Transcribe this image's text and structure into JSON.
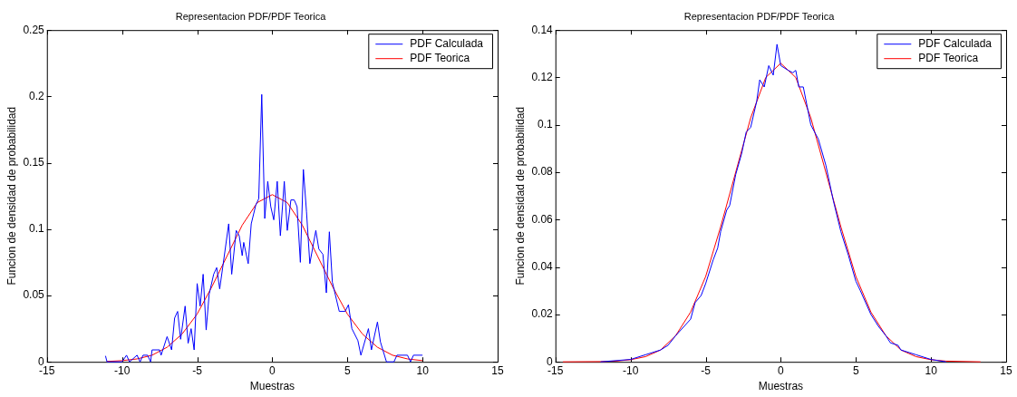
{
  "chart_data": [
    {
      "type": "line",
      "title": "Representacion PDF/PDF Teorica",
      "xlabel": "Muestras",
      "ylabel": "Funcion de densidad de probabilidad",
      "xlim": [
        -15,
        15
      ],
      "ylim": [
        0,
        0.25
      ],
      "xticks": [
        -15,
        -10,
        -5,
        0,
        5,
        10,
        15
      ],
      "yticks": [
        0,
        0.05,
        0.1,
        0.15,
        0.2,
        0.25
      ],
      "grid": false,
      "legend": "top right",
      "series": [
        {
          "name": "PDF Calculada",
          "color": "#0000ff",
          "x": [
            -11.1,
            -11.0,
            -10.0,
            -9.7,
            -9.5,
            -9.0,
            -8.8,
            -8.6,
            -8.3,
            -8.1,
            -8.0,
            -7.5,
            -7.4,
            -7.0,
            -6.7,
            -6.5,
            -6.3,
            -6.1,
            -5.8,
            -5.6,
            -5.4,
            -5.2,
            -5.0,
            -4.8,
            -4.6,
            -4.4,
            -4.2,
            -3.9,
            -3.7,
            -3.5,
            -3.3,
            -2.9,
            -2.7,
            -2.4,
            -2.2,
            -2.0,
            -1.9,
            -1.6,
            -1.4,
            -1.1,
            -0.9,
            -0.7,
            -0.5,
            -0.3,
            -0.1,
            0.1,
            0.33,
            0.54,
            0.8,
            1.0,
            1.24,
            1.46,
            1.65,
            1.87,
            2.07,
            2.28,
            2.5,
            2.9,
            3.1,
            3.37,
            3.6,
            3.8,
            4.0,
            4.46,
            4.85,
            5.07,
            5.3,
            5.7,
            5.9,
            6.4,
            6.6,
            7.0,
            7.2,
            7.6,
            8.1,
            8.3,
            9.0,
            9.2,
            9.4,
            10.0
          ],
          "values": [
            0.0045,
            0,
            0,
            0.005,
            0,
            0.005,
            0,
            0.005,
            0.005,
            0,
            0.009,
            0.009,
            0.005,
            0.019,
            0.009,
            0.033,
            0.038,
            0.017,
            0.042,
            0.014,
            0.025,
            0.009,
            0.059,
            0.042,
            0.066,
            0.024,
            0.051,
            0.066,
            0.071,
            0.055,
            0.071,
            0.104,
            0.066,
            0.099,
            0.095,
            0.08,
            0.09,
            0.074,
            0.104,
            0.118,
            0.123,
            0.2015,
            0.108,
            0.136,
            0.117,
            0.107,
            0.136,
            0.095,
            0.136,
            0.099,
            0.122,
            0.122,
            0.117,
            0.075,
            0.145,
            0.113,
            0.074,
            0.099,
            0.085,
            0.081,
            0.052,
            0.098,
            0.06,
            0.038,
            0.038,
            0.043,
            0.025,
            0.016,
            0.005,
            0.025,
            0.009,
            0.03,
            0.015,
            0,
            0,
            0.005,
            0.005,
            0,
            0.005,
            0.005
          ]
        },
        {
          "name": "PDF Teorica",
          "color": "#ff0000",
          "x": [
            -11,
            -10,
            -9,
            -8,
            -7,
            -6,
            -5,
            -4,
            -3,
            -2,
            -1,
            0,
            1,
            2,
            3,
            4,
            5,
            6,
            7,
            8,
            9,
            10
          ],
          "values": [
            0.0003,
            0.0009,
            0.0022,
            0.005,
            0.011,
            0.021,
            0.036,
            0.057,
            0.08,
            0.103,
            0.12,
            0.126,
            0.12,
            0.103,
            0.08,
            0.057,
            0.036,
            0.021,
            0.011,
            0.005,
            0.0022,
            0.0009
          ]
        }
      ]
    },
    {
      "type": "line",
      "title": "Representacion PDF/PDF Teorica",
      "xlabel": "Muestras",
      "ylabel": "Funcion de densidad de probabilidad",
      "xlim": [
        -15,
        15
      ],
      "ylim": [
        0,
        0.14
      ],
      "xticks": [
        -15,
        -10,
        -5,
        0,
        5,
        10,
        15
      ],
      "yticks": [
        0,
        0.02,
        0.04,
        0.06,
        0.08,
        0.1,
        0.12,
        0.14
      ],
      "grid": false,
      "legend": "top right",
      "series": [
        {
          "name": "PDF Calculada",
          "color": "#0000ff",
          "x": [
            -12,
            -10,
            -9,
            -8,
            -7.5,
            -7,
            -6,
            -5.7,
            -5.3,
            -5,
            -4.5,
            -4.2,
            -4,
            -3.6,
            -3.4,
            -3,
            -2.6,
            -2.3,
            -2,
            -1.6,
            -1.4,
            -1.1,
            -0.8,
            -0.5,
            -0.25,
            0,
            0.5,
            0.8,
            1,
            1.2,
            1.5,
            2,
            2.5,
            3,
            3.5,
            4,
            4.5,
            5,
            5.3,
            6,
            6.5,
            7,
            7.3,
            7.8,
            8,
            9,
            10,
            11
          ],
          "values": [
            0,
            0.001,
            0.003,
            0.005,
            0.007,
            0.011,
            0.018,
            0.025,
            0.028,
            0.033,
            0.043,
            0.048,
            0.055,
            0.064,
            0.066,
            0.079,
            0.088,
            0.097,
            0.099,
            0.11,
            0.119,
            0.116,
            0.125,
            0.121,
            0.134,
            0.125,
            0.123,
            0.122,
            0.123,
            0.116,
            0.116,
            0.1,
            0.094,
            0.083,
            0.068,
            0.055,
            0.045,
            0.034,
            0.03,
            0.02,
            0.015,
            0.011,
            0.008,
            0.007,
            0.005,
            0.003,
            0.001,
            0
          ]
        },
        {
          "name": "PDF Teorica",
          "color": "#ff0000",
          "x": [
            -14.5,
            -12,
            -11,
            -10,
            -9,
            -8,
            -7,
            -6,
            -5,
            -4,
            -3,
            -2,
            -1,
            0,
            1,
            2,
            3,
            4,
            5,
            6,
            7,
            8,
            9,
            10,
            11,
            13.3
          ],
          "values": [
            0,
            0.0001,
            0.0003,
            0.0009,
            0.0022,
            0.005,
            0.011,
            0.021,
            0.036,
            0.057,
            0.08,
            0.103,
            0.12,
            0.126,
            0.12,
            0.103,
            0.08,
            0.057,
            0.036,
            0.021,
            0.011,
            0.005,
            0.0022,
            0.0009,
            0.0003,
            0
          ]
        }
      ]
    }
  ]
}
